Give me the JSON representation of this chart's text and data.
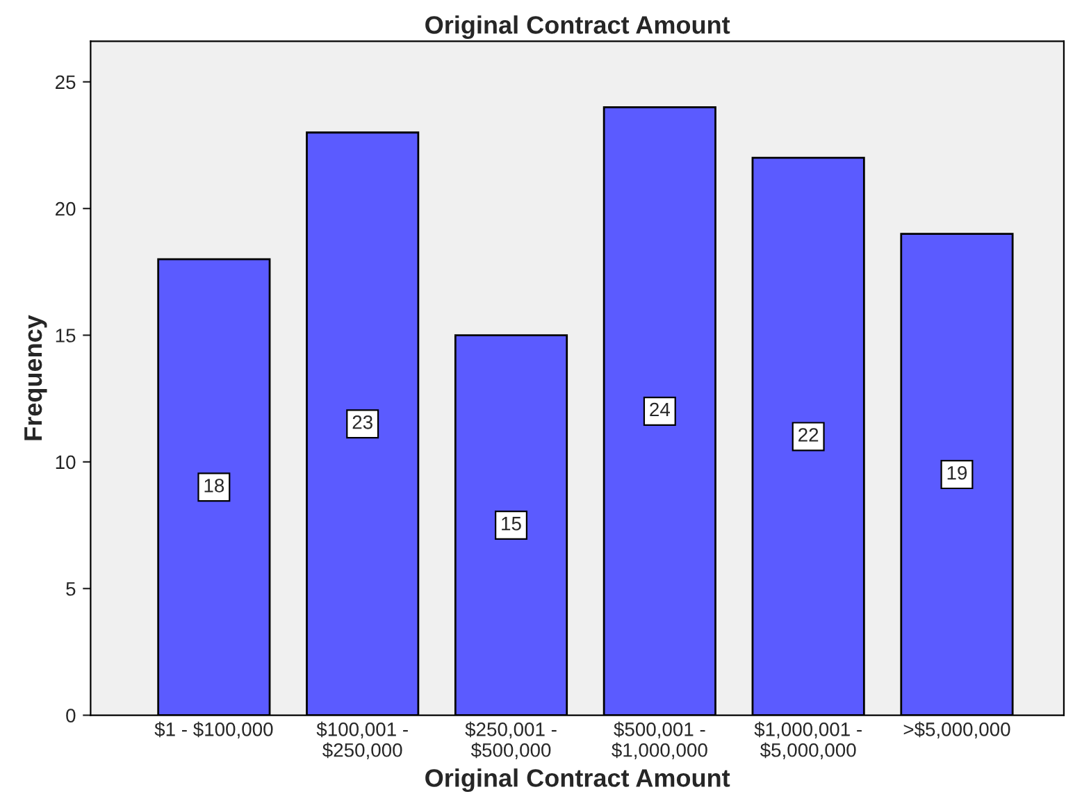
{
  "chart_data": {
    "type": "bar",
    "title": "Original Contract Amount",
    "xlabel": "Original Contract Amount",
    "ylabel": "Frequency",
    "categories": [
      "$1 - $100,000",
      "$100,001 -\n$250,000",
      "$250,001 -\n$500,000",
      "$500,001 -\n$1,000,000",
      "$1,000,001 -\n$5,000,000",
      ">$5,000,000"
    ],
    "values": [
      18,
      23,
      15,
      24,
      22,
      19
    ],
    "color": "#5b5bff",
    "ylim": [
      0,
      26.6
    ],
    "yticks": [
      0,
      5,
      10,
      15,
      20,
      25
    ],
    "grid": false,
    "data_labels": true
  }
}
